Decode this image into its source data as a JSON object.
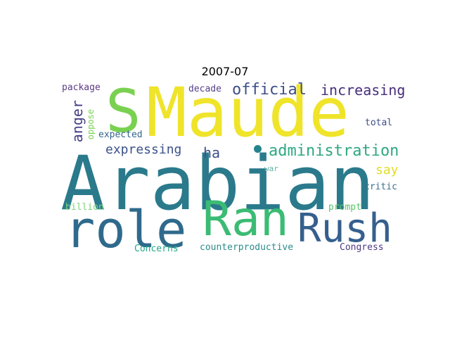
{
  "title": "2007-07",
  "wordcloud": {
    "words": [
      {
        "text": "Maude",
        "color": "#efe42a"
      },
      {
        "text": "S",
        "color": "#7ad151"
      },
      {
        "text": "Arabian",
        "color": "#2a7a8c"
      },
      {
        "text": "role",
        "color": "#2f6a8c"
      },
      {
        "text": "Ran",
        "color": "#3bbb74"
      },
      {
        "text": "Rush",
        "color": "#355f8d"
      },
      {
        "text": "official",
        "color": "#3d4f8a"
      },
      {
        "text": "increasing",
        "color": "#472d7b"
      },
      {
        "text": "administration",
        "color": "#2ea882"
      },
      {
        "text": "expressing",
        "color": "#3b518b"
      },
      {
        "text": "anger",
        "color": "#433e85"
      },
      {
        "text": "ha",
        "color": "#3c4f8a"
      },
      {
        "text": "say",
        "color": "#e0dd26"
      },
      {
        "text": "package",
        "color": "#5b3a84"
      },
      {
        "text": "decade",
        "color": "#55408a"
      },
      {
        "text": "expected",
        "color": "#33638d"
      },
      {
        "text": "oppose",
        "color": "#7ad151"
      },
      {
        "text": "total",
        "color": "#3d4e8a"
      },
      {
        "text": "war",
        "color": "#62b3a2"
      },
      {
        "text": "critic",
        "color": "#3f6f8e"
      },
      {
        "text": "billion",
        "color": "#7ed37a"
      },
      {
        "text": "prompt",
        "color": "#5ac46a"
      },
      {
        "text": "Concerns",
        "color": "#22a884"
      },
      {
        "text": "counterproductive",
        "color": "#2c8b8c"
      },
      {
        "text": "Congress",
        "color": "#4e3a82"
      }
    ],
    "dot_color": "#26838e"
  }
}
